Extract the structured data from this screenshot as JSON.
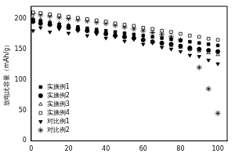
{
  "chart_data": {
    "type": "scatter",
    "y_label": "放电比容量（mAh/g）",
    "x": [
      1,
      5,
      10,
      15,
      20,
      25,
      30,
      35,
      40,
      45,
      50,
      55,
      60,
      65,
      70,
      75,
      80,
      85,
      90,
      95,
      100
    ],
    "series": [
      {
        "name": "实施例1",
        "color": "#000000",
        "marker": "square",
        "values": [
          198,
          196,
          193,
          190,
          188,
          186,
          184,
          182,
          180,
          178,
          176,
          174,
          172,
          170,
          168,
          166,
          164,
          162,
          160,
          158,
          156
        ]
      },
      {
        "name": "实施例2",
        "color": "#000000",
        "marker": "circle",
        "values": [
          195,
          192,
          190,
          187,
          185,
          182,
          180,
          178,
          175,
          172,
          170,
          168,
          165,
          162,
          160,
          158,
          155,
          152,
          150,
          148,
          146
        ]
      },
      {
        "name": "实施例3",
        "color": "#000000",
        "marker": "triangle-open",
        "values": [
          200,
          198,
          195,
          192,
          189,
          186,
          183,
          180,
          177,
          174,
          171,
          168,
          165,
          162,
          159,
          156,
          153,
          150,
          147,
          144,
          141
        ]
      },
      {
        "name": "实施例4",
        "color": "#000000",
        "marker": "square-open",
        "values": [
          210,
          209,
          207,
          205,
          203,
          201,
          199,
          197,
          195,
          192,
          190,
          188,
          185,
          183,
          180,
          178,
          175,
          172,
          170,
          167,
          165
        ]
      },
      {
        "name": "对比例1",
        "color": "#000000",
        "marker": "triangle-down",
        "values": [
          180,
          185,
          178,
          183,
          176,
          180,
          172,
          175,
          168,
          170,
          163,
          166,
          158,
          160,
          153,
          150,
          146,
          140,
          138,
          132,
          126
        ]
      },
      {
        "name": "对比例2",
        "color": "#000000",
        "marker": "star-open",
        "values": [
          208,
          206,
          204,
          202,
          200,
          198,
          196,
          194,
          192,
          189,
          186,
          183,
          180,
          177,
          174,
          170,
          165,
          150,
          120,
          85,
          45
        ]
      }
    ],
    "xlim": [
      0,
      105
    ],
    "xticks": [
      0,
      20,
      40,
      60,
      80,
      100
    ],
    "ylim": [
      0,
      220
    ],
    "yticks": [
      0,
      50,
      100,
      150,
      200
    ],
    "grid": false,
    "legend": "lower left"
  }
}
